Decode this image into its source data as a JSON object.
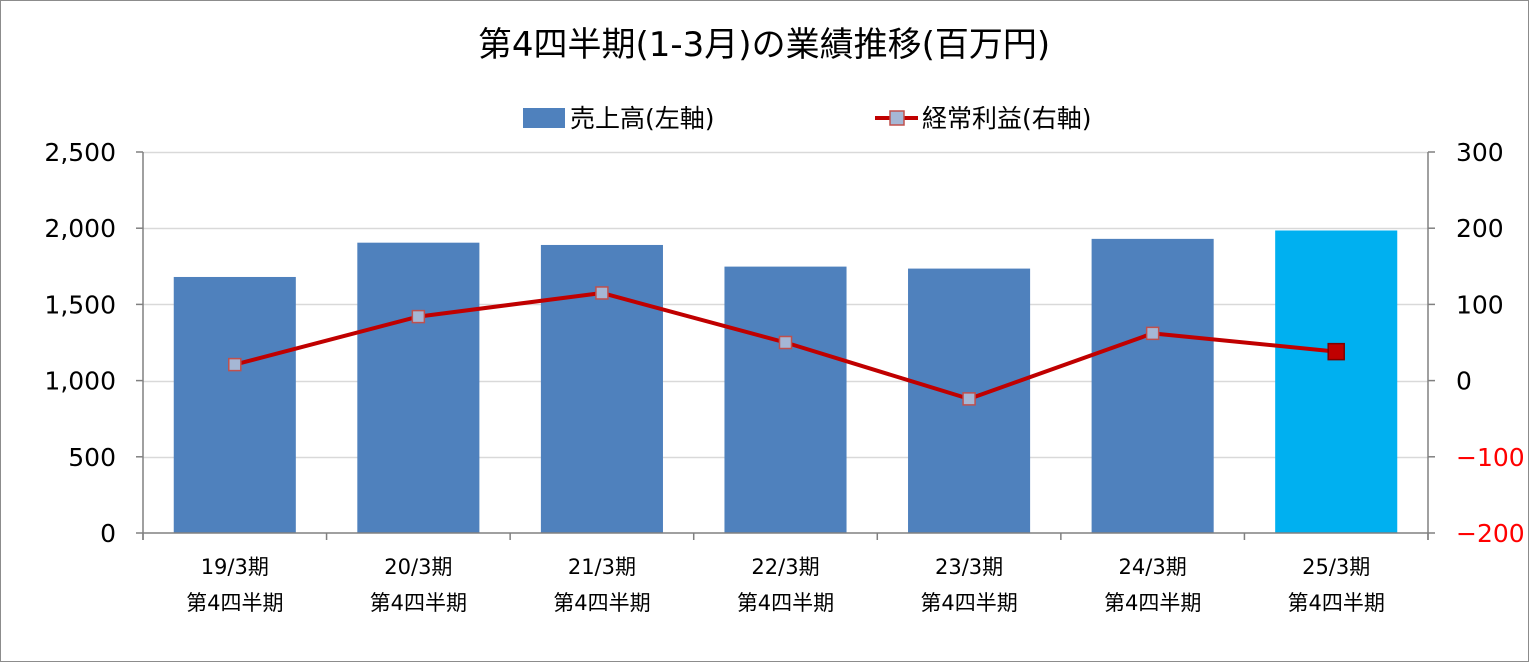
{
  "chart_data": {
    "type": "bar+line",
    "title": "第4四半期(1-3月)の業績推移(百万円)",
    "categories": [
      [
        "19/3期",
        "第4四半期"
      ],
      [
        "20/3期",
        "第4四半期"
      ],
      [
        "21/3期",
        "第4四半期"
      ],
      [
        "22/3期",
        "第4四半期"
      ],
      [
        "23/3期",
        "第4四半期"
      ],
      [
        "24/3期",
        "第4四半期"
      ],
      [
        "25/3期",
        "第4四半期"
      ]
    ],
    "series": [
      {
        "name": "売上高(左軸)",
        "type": "bar",
        "axis": "left",
        "values": [
          1680,
          1905,
          1890,
          1748,
          1735,
          1930,
          1985
        ],
        "color": "#4f81bd",
        "highlight_color": "#00b0f0",
        "highlight_index": 6
      },
      {
        "name": "経常利益(右軸)",
        "type": "line",
        "axis": "right",
        "values": [
          21,
          84,
          115,
          50,
          -24,
          62,
          38
        ],
        "line_color": "#c00000",
        "marker_color": "#a5b7d5",
        "marker_edge_color": "#c0504d",
        "highlight_marker_color": "#c00000",
        "highlight_index": 6
      }
    ],
    "y_left": {
      "min": 0,
      "max": 2500,
      "ticks": [
        0,
        500,
        1000,
        1500,
        2000,
        2500
      ],
      "tick_labels": [
        "0",
        "500",
        "1,000",
        "1,500",
        "2,000",
        "2,500"
      ]
    },
    "y_right": {
      "min": -200,
      "max": 300,
      "ticks": [
        -200,
        -100,
        0,
        100,
        200,
        300
      ],
      "tick_labels": [
        "−200",
        "−100",
        "0",
        "100",
        "200",
        "300"
      ],
      "negative_color": "#ff0000"
    },
    "grid": "horizontal",
    "legend_position": "top-center"
  }
}
